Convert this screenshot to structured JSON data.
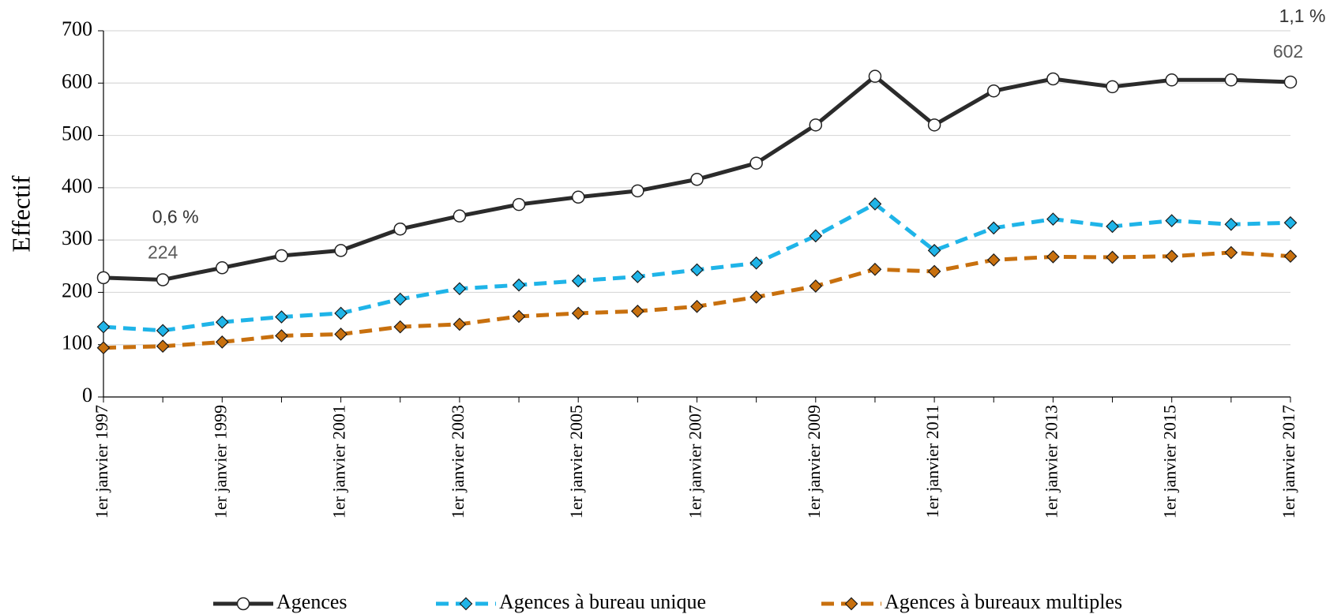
{
  "chart_data": {
    "type": "line",
    "y_label": "Effectif",
    "categories": [
      "1er janvier 1997",
      null,
      "1er janvier 1999",
      null,
      "1er janvier 2001",
      null,
      "1er janvier 2003",
      null,
      "1er janvier 2005",
      null,
      "1er janvier 2007",
      null,
      "1er janvier 2009",
      null,
      "1er janvier 2011",
      null,
      "1er janvier 2013",
      null,
      "1er janvier 2015",
      null,
      "1er janvier 2017"
    ],
    "series": [
      {
        "name": "Agences",
        "color": "#2b2b2b",
        "marker": "circle",
        "dashed": false,
        "values": [
          228,
          224,
          247,
          270,
          280,
          321,
          346,
          368,
          382,
          394,
          416,
          447,
          520,
          613,
          520,
          585,
          608,
          593,
          606,
          606,
          602
        ]
      },
      {
        "name": "Agences à bureau unique",
        "color": "#1fb4e8",
        "marker": "diamond",
        "dashed": true,
        "values": [
          134,
          127,
          143,
          153,
          160,
          187,
          207,
          214,
          222,
          230,
          243,
          256,
          308,
          369,
          280,
          323,
          340,
          326,
          337,
          330,
          333
        ]
      },
      {
        "name": "Agences à bureaux multiples",
        "color": "#c8700e",
        "marker": "diamond",
        "dashed": true,
        "values": [
          94,
          97,
          105,
          117,
          120,
          134,
          139,
          154,
          160,
          164,
          173,
          191,
          212,
          244,
          240,
          262,
          268,
          267,
          269,
          276,
          269
        ]
      }
    ],
    "annotations": [
      {
        "text": "0,6 %",
        "color": "#333333"
      },
      {
        "text": "224",
        "color": "#595959"
      },
      {
        "text": "1,1 %",
        "color": "#333333"
      },
      {
        "text": "602",
        "color": "#595959"
      }
    ],
    "ylim": [
      0,
      700
    ],
    "yticks": [
      0,
      100,
      200,
      300,
      400,
      500,
      600,
      700
    ],
    "grid": true,
    "legend": "bottom"
  }
}
